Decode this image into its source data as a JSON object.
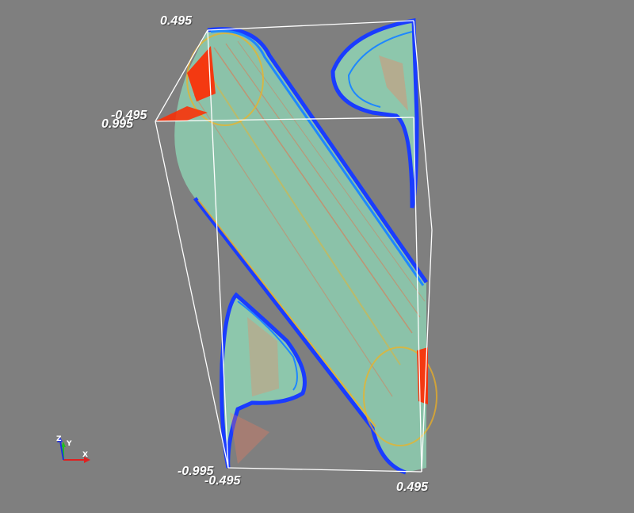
{
  "scene": {
    "background": "#7f7f7f",
    "outline_color": "#ffffff",
    "volume_colors": {
      "body": "#8fd3b4",
      "edge": "#1a3cff",
      "rim": "#1e88ff",
      "hot": "#ff2a00",
      "warm": "#f4b21c"
    },
    "bounds_labels": {
      "top_back_x": "0.495",
      "top_left_y": "-0.495",
      "top_left_z": "0.995",
      "bottom_left_z": "-0.995",
      "bottom_left_y": "-0.495",
      "bottom_right_x": "0.495"
    },
    "orientation_axes": {
      "x": "X",
      "y": "Y",
      "z": "Z",
      "x_color": "#e02020",
      "y_color": "#20c020",
      "z_color": "#2030e0"
    }
  }
}
